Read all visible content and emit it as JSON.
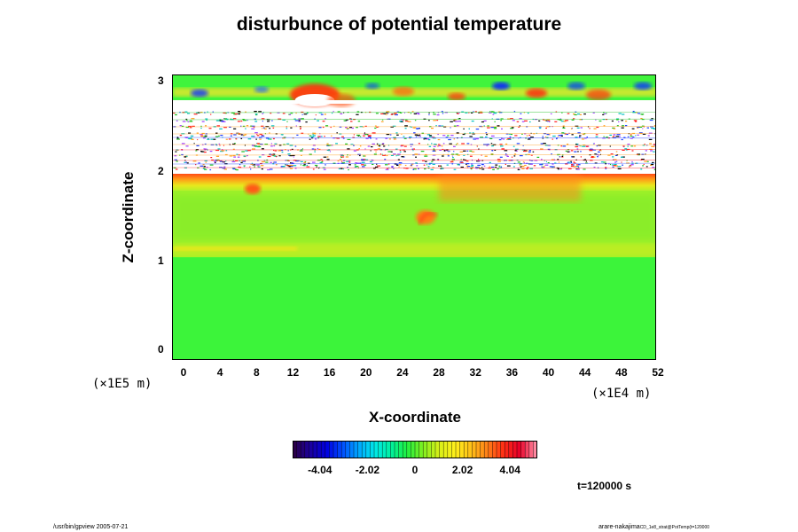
{
  "chart_data": {
    "type": "heatmap",
    "title": "disturbunce of potential temperature",
    "xlabel": "X-coordinate",
    "ylabel": "Z-coordinate",
    "x_multiplier": "(×1E4 m)",
    "z_multiplier": "(×1E5 m)",
    "x_ticks": [
      "0",
      "4",
      "8",
      "12",
      "16",
      "20",
      "24",
      "28",
      "32",
      "36",
      "40",
      "44",
      "48",
      "52"
    ],
    "z_ticks": [
      "0",
      "1",
      "2",
      "3"
    ],
    "xlim": [
      0,
      52
    ],
    "zlim": [
      0,
      3
    ],
    "field_description_values": [
      {
        "z_range": [
          0,
          1.05
        ],
        "value": 0
      },
      {
        "z_range": [
          1.05,
          1.95
        ],
        "value": 0.6
      },
      {
        "z_range": [
          1.95,
          2.0
        ],
        "value": 3.5
      },
      {
        "z_range": [
          2.0,
          2.75
        ],
        "value": "out of range"
      },
      {
        "z_range": [
          2.75,
          3.0
        ],
        "value": 0.8
      }
    ],
    "colorbar": {
      "ticks": [
        "-4.04",
        "-2.02",
        "0",
        "2.02",
        "4.04"
      ],
      "range": [
        -5.2,
        5.2
      ]
    },
    "time_label": "t=120000 s"
  },
  "footer": {
    "left": "/usr/bin/gpview 2005-07-21",
    "right": "arare-nakajima",
    "right_small": "CD_1e8_strat@PotTemp(t=120000"
  }
}
